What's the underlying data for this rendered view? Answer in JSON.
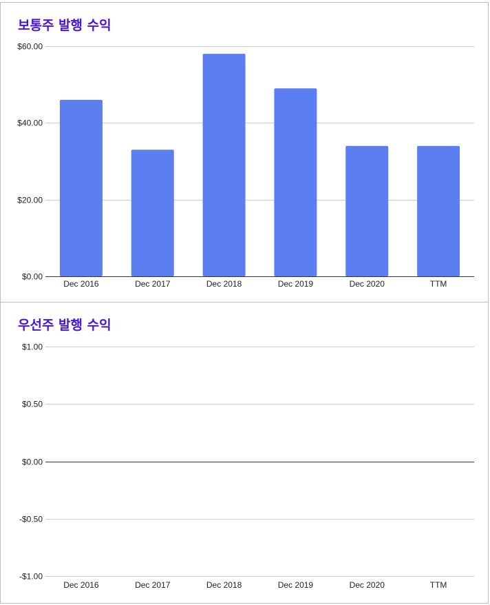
{
  "charts": [
    {
      "title": "보통주 발행 수익",
      "chart_data": {
        "type": "bar",
        "categories": [
          "Dec 2016",
          "Dec 2017",
          "Dec 2018",
          "Dec 2019",
          "Dec 2020",
          "TTM"
        ],
        "values": [
          46,
          33,
          58,
          49,
          34,
          34
        ],
        "ylim": [
          0,
          60
        ],
        "yticks": [
          0,
          20,
          40,
          60
        ],
        "ytick_labels": [
          "$0.00",
          "$20.00",
          "$40.00",
          "$60.00"
        ],
        "grid": true,
        "bar_color": "#5b7ff1"
      }
    },
    {
      "title": "우선주 발행 수익",
      "chart_data": {
        "type": "bar",
        "categories": [
          "Dec 2016",
          "Dec 2017",
          "Dec 2018",
          "Dec 2019",
          "Dec 2020",
          "TTM"
        ],
        "values": [
          0,
          0,
          0,
          0,
          0,
          0
        ],
        "ylim": [
          -1,
          1
        ],
        "yticks": [
          -1,
          -0.5,
          0,
          0.5,
          1
        ],
        "ytick_labels": [
          "-$1.00",
          "-$0.50",
          "$0.00",
          "$0.50",
          "$1.00"
        ],
        "grid": true,
        "bar_color": "#5b7ff1"
      }
    }
  ]
}
